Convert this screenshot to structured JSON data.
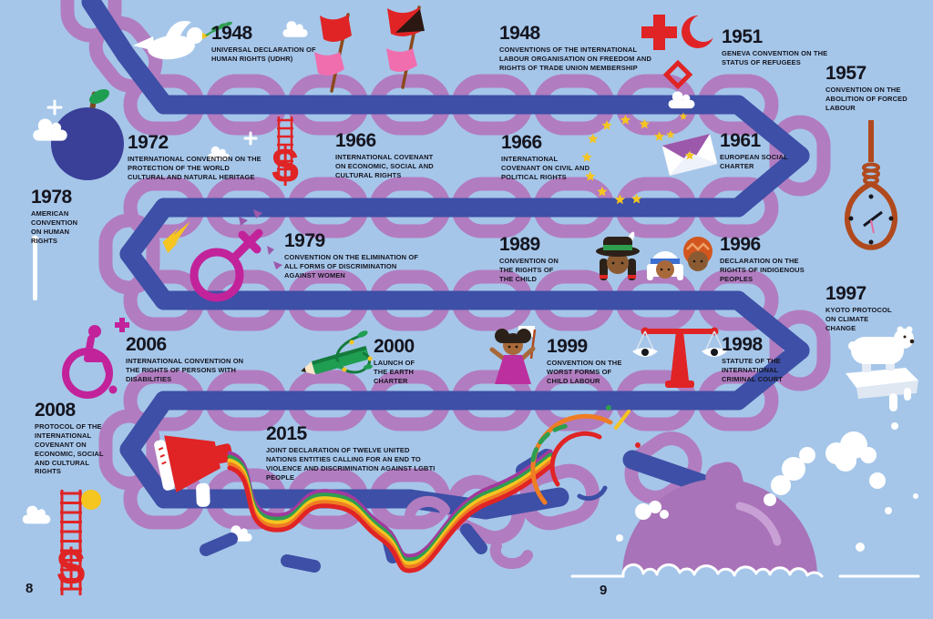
{
  "page": {
    "left_page_number": "8",
    "right_page_number": "9"
  },
  "glyphs": {
    "dollar": "$"
  },
  "colors": {
    "background": "#a5c6e9",
    "chain_purple": "#b27cc0",
    "chain_blue": "#3d4fa6",
    "text": "#15151f",
    "red": "#e02425",
    "pink": "#f06eae",
    "magenta": "#c2239b",
    "gold": "#f5c520",
    "green": "#2f9e4f",
    "rust": "#b04a1e",
    "mine_purple": "#a873b8"
  },
  "illustration_motifs": [
    "winding-chain",
    "dove-of-peace",
    "protest-flags",
    "red-cross-crescent-crystal",
    "noose-clock",
    "berry-planet",
    "euro-stars-envelope",
    "costa-rica-flag",
    "female-symbol-lightning",
    "indigenous-faces",
    "polar-bear-on-ice",
    "wheelchair",
    "pencil-vine",
    "child-with-flag",
    "scales-of-justice",
    "megaphone-rainbow",
    "ladder-and-dollar",
    "sun",
    "clouds",
    "broken-chain-fragments",
    "sea-mine-in-water"
  ],
  "timeline": {
    "entries": [
      {
        "year": "1948",
        "text": "UNIVERSAL DECLARATION OF HUMAN RIGHTS (UDHR)",
        "icon": "dove-olive-branch-icon"
      },
      {
        "year": "1948",
        "text": "CONVENTIONS OF THE INTERNATIONAL LABOUR ORGANISATION ON FREEDOM AND RIGHTS OF TRADE UNION MEMBERSHIP",
        "icon": "protest-flags-icon"
      },
      {
        "year": "1951",
        "text": "GENEVA CONVENTION ON THE STATUS OF REFUGEES",
        "icon": "red-cross-crescent-crystal-icon"
      },
      {
        "year": "1957",
        "text": "CONVENTION ON THE ABOLITION OF FORCED LABOUR",
        "icon": "noose-clock-icon"
      },
      {
        "year": "1972",
        "text": "INTERNATIONAL CONVENTION ON THE PROTECTION OF THE WORLD CULTURAL AND NATURAL HERITAGE",
        "icon": "berry-planet-icon"
      },
      {
        "year": "1966",
        "text": "INTERNATIONAL COVENANT ON ECONOMIC, SOCIAL AND CULTURAL RIGHTS",
        "icon": "dollar-ladder-icon"
      },
      {
        "year": "1966",
        "text": "INTERNATIONAL COVENANT ON CIVIL AND POLITICAL RIGHTS",
        "icon": "star-circle-icon"
      },
      {
        "year": "1961",
        "text": "EUROPEAN SOCIAL CHARTER",
        "icon": "envelope-star-icon"
      },
      {
        "year": "1978",
        "text": "AMERICAN CONVENTION ON HUMAN RIGHTS",
        "icon": "striped-flag-icon"
      },
      {
        "year": "1979",
        "text": "CONVENTION ON THE ELIMINATION OF ALL FORMS OF DISCRIMINATION AGAINST WOMEN",
        "icon": "female-symbol-lightning-icon"
      },
      {
        "year": "1989",
        "text": "CONVENTION ON THE RIGHTS OF THE CHILD",
        "icon": ""
      },
      {
        "year": "1996",
        "text": "DECLARATION ON THE RIGHTS OF INDIGENOUS PEOPLES",
        "icon": "indigenous-faces-icon"
      },
      {
        "year": "1997",
        "text": "KYOTO PROTOCOL ON CLIMATE CHANGE",
        "icon": "polar-bear-icon"
      },
      {
        "year": "2006",
        "text": "INTERNATIONAL CONVENTION ON THE RIGHTS OF PERSONS WITH DISABILITIES",
        "icon": "wheelchair-icon"
      },
      {
        "year": "2000",
        "text": "LAUNCH OF THE EARTH CHARTER",
        "icon": "pencil-vine-icon"
      },
      {
        "year": "1999",
        "text": "CONVENTION ON THE WORST FORMS OF CHILD LABOUR",
        "icon": "child-flag-icon"
      },
      {
        "year": "1998",
        "text": "STATUTE OF THE INTERNATIONAL CRIMINAL COURT",
        "icon": "scales-icon"
      },
      {
        "year": "2008",
        "text": "PROTOCOL OF THE INTERNATIONAL COVENANT ON ECONOMIC, SOCIAL AND CULTURAL RIGHTS",
        "icon": "ladder-dollar-icon"
      },
      {
        "year": "2015",
        "text": "JOINT DECLARATION OF TWELVE UNITED NATIONS ENTITIES CALLING FOR AN END TO VIOLENCE AND DISCRIMINATION AGAINST LGBTI PEOPLE",
        "icon": "megaphone-rainbow-icon"
      }
    ]
  }
}
